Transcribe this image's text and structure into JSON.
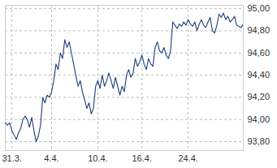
{
  "chart_data": {
    "type": "line",
    "categories": [
      null,
      null,
      null,
      "31.3.",
      null,
      null,
      null,
      null,
      null,
      null,
      null,
      null,
      null,
      null,
      null,
      null,
      null,
      null,
      null,
      null,
      null,
      "4.4.",
      null,
      null,
      null,
      null,
      null,
      null,
      null,
      null,
      null,
      null,
      null,
      null,
      null,
      null,
      null,
      null,
      null,
      null,
      null,
      null,
      "10.4.",
      null,
      null,
      null,
      null,
      null,
      null,
      null,
      null,
      null,
      null,
      null,
      null,
      null,
      null,
      null,
      null,
      null,
      null,
      null,
      "16.4.",
      null,
      null,
      null,
      null,
      null,
      null,
      null,
      null,
      null,
      null,
      null,
      null,
      null,
      null,
      null,
      null,
      null,
      null,
      null,
      null,
      "24.4.",
      null,
      null,
      null,
      null,
      null,
      null,
      null,
      null,
      null,
      null,
      null,
      null,
      null,
      null,
      null,
      null,
      null,
      null,
      null,
      null,
      null,
      null,
      null,
      null,
      null
    ],
    "values": [
      93.97,
      93.95,
      93.97,
      93.9,
      93.86,
      93.82,
      93.88,
      93.92,
      94.0,
      94.03,
      94.0,
      93.93,
      94.02,
      93.9,
      93.8,
      93.85,
      93.95,
      94.2,
      94.15,
      94.22,
      94.2,
      94.25,
      94.35,
      94.5,
      94.45,
      94.6,
      94.55,
      94.72,
      94.65,
      94.7,
      94.6,
      94.5,
      94.4,
      94.3,
      94.35,
      94.25,
      94.18,
      94.1,
      94.15,
      94.05,
      94.1,
      94.3,
      94.35,
      94.28,
      94.4,
      94.3,
      94.35,
      94.42,
      94.35,
      94.28,
      94.38,
      94.3,
      94.22,
      94.3,
      94.25,
      94.4,
      94.45,
      94.38,
      94.42,
      94.55,
      94.48,
      94.52,
      94.58,
      94.5,
      94.45,
      94.55,
      94.5,
      94.48,
      94.65,
      94.7,
      94.62,
      94.6,
      94.65,
      94.58,
      94.55,
      94.62,
      94.88,
      94.85,
      94.82,
      94.86,
      94.84,
      94.88,
      94.85,
      94.9,
      94.86,
      94.84,
      94.88,
      94.8,
      94.86,
      94.9,
      94.85,
      94.83,
      94.88,
      94.92,
      94.8,
      94.78,
      94.85,
      94.95,
      94.92,
      94.96,
      94.9,
      94.93,
      94.88,
      94.9,
      94.93,
      94.85,
      94.84,
      94.83,
      94.86
    ],
    "color": "#1b3f7a",
    "ylim": [
      93.72,
      95.03
    ],
    "yticks": [
      {
        "value": 93.8,
        "label": "93,80"
      },
      {
        "value": 94.0,
        "label": "94,00"
      },
      {
        "value": 94.2,
        "label": "94,20"
      },
      {
        "value": 94.4,
        "label": "94,40"
      },
      {
        "value": 94.6,
        "label": "94,60"
      },
      {
        "value": 94.8,
        "label": "94,80"
      },
      {
        "value": 95.0,
        "label": "95,00"
      }
    ],
    "grid": true
  }
}
